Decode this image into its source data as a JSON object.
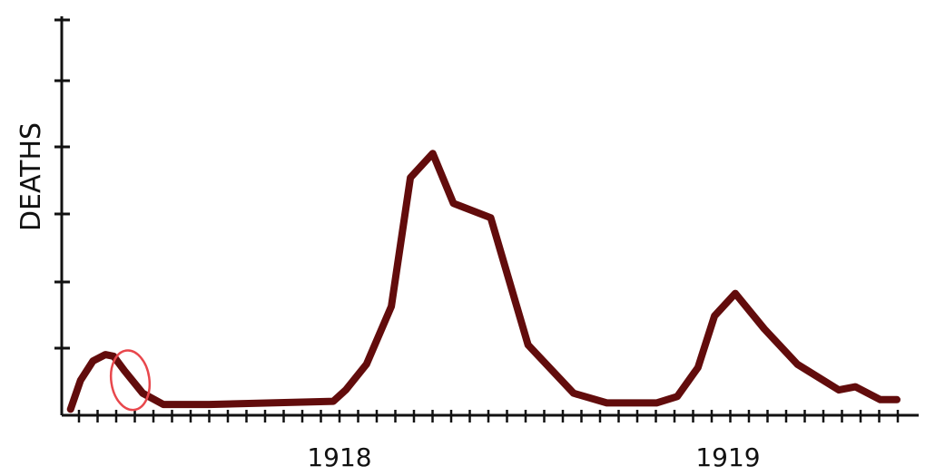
{
  "chart_data": {
    "type": "line",
    "title": "",
    "xlabel": "",
    "ylabel": "DEATHS",
    "x_tick_labels": [
      "1918",
      "1919"
    ],
    "xlim": [
      0,
      100
    ],
    "ylim": [
      0,
      100
    ],
    "grid": false,
    "series": [
      {
        "values": [
          [
            0.3,
            1
          ],
          [
            1.5,
            10
          ],
          [
            3,
            16
          ],
          [
            4.5,
            18
          ],
          [
            5.5,
            17.5
          ],
          [
            6.8,
            13
          ],
          [
            9,
            6
          ],
          [
            11.5,
            2.5
          ],
          [
            17,
            2.5
          ],
          [
            32,
            3.5
          ],
          [
            33.5,
            7
          ],
          [
            36,
            15
          ],
          [
            39,
            33
          ],
          [
            41.3,
            73
          ],
          [
            44,
            80.5
          ],
          [
            46.5,
            65
          ],
          [
            51,
            60.5
          ],
          [
            55.5,
            21
          ],
          [
            61,
            6
          ],
          [
            65,
            3
          ],
          [
            71,
            3
          ],
          [
            73.5,
            5
          ],
          [
            76,
            14
          ],
          [
            78,
            30
          ],
          [
            80.5,
            37
          ],
          [
            84,
            26
          ],
          [
            88,
            15
          ],
          [
            93,
            7
          ],
          [
            95,
            8
          ],
          [
            98,
            4
          ],
          [
            100,
            4
          ]
        ]
      }
    ],
    "annotations": [
      {
        "type": "ellipse",
        "x": 7.5,
        "y": 14,
        "color": "#e8474c"
      }
    ],
    "colors": {
      "line": "#620c0c",
      "axis": "#111111",
      "annotation": "#e8474c"
    }
  }
}
